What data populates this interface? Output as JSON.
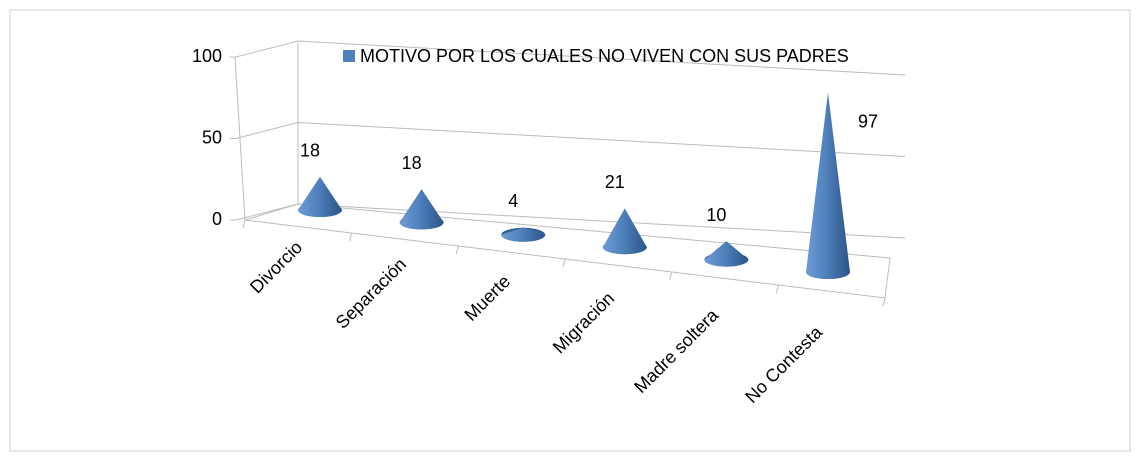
{
  "chart_data": {
    "type": "bar",
    "categories": [
      "Divorcio",
      "Separación",
      "Muerte",
      "Migración",
      "Madre soltera",
      "No  Contesta"
    ],
    "series": [
      {
        "name": "MOTIVO POR LOS CUALES NO VIVEN CON SUS PADRES",
        "color": "#4f81bd",
        "values": [
          18,
          18,
          4,
          21,
          10,
          97
        ]
      }
    ],
    "ylim": [
      0,
      100
    ],
    "yticks": [
      0,
      50,
      100
    ],
    "grid": true
  }
}
